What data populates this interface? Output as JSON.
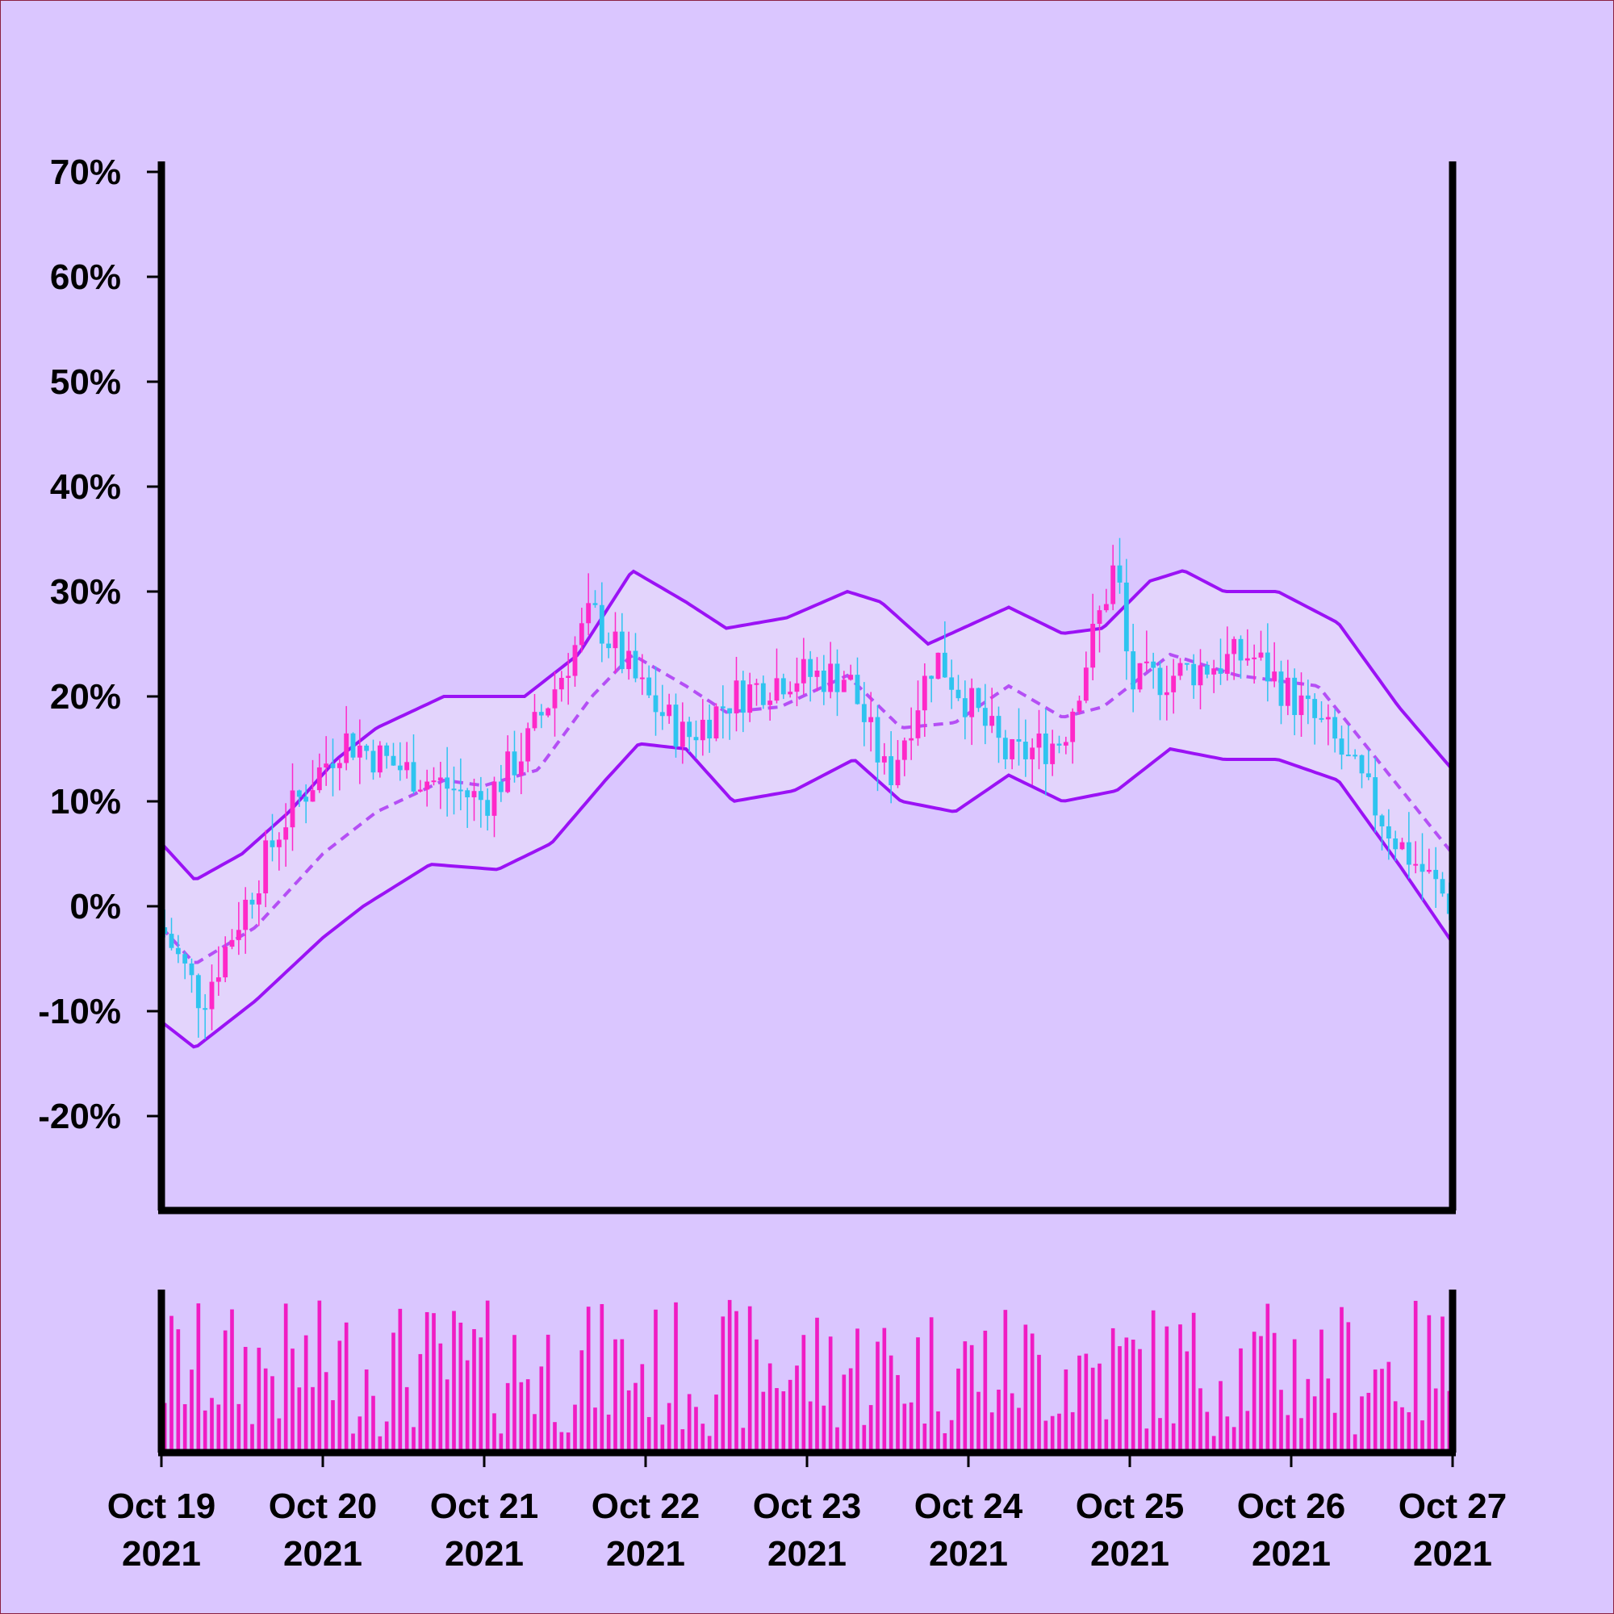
{
  "colors": {
    "background": "#dac6ff",
    "band_line": "#9b12f5",
    "band_fill": "#e6d8fb",
    "middle_line": "#b54ff5",
    "up_candle": "#ff28c8",
    "down_candle": "#2ec4ef",
    "volume": "#f01cc3",
    "axis": "#000000"
  },
  "chart_data": {
    "type": "candlestick",
    "title": "",
    "xlabel": "",
    "ylabel": "",
    "ylim": [
      -29,
      71
    ],
    "yticks": [
      70,
      60,
      50,
      40,
      30,
      20,
      10,
      0,
      -10,
      -20
    ],
    "ytick_labels": [
      "70%",
      "60%",
      "50%",
      "40%",
      "30%",
      "20%",
      "10%",
      "0%",
      "-10%",
      "-20%"
    ],
    "y_format": "percent",
    "xrange": [
      "2021-10-19",
      "2021-10-27"
    ],
    "xticks": [
      {
        "date": "2021-10-19",
        "line1": "Oct 19",
        "line2": "2021"
      },
      {
        "date": "2021-10-20",
        "line1": "Oct 20",
        "line2": "2021"
      },
      {
        "date": "2021-10-21",
        "line1": "Oct 21",
        "line2": "2021"
      },
      {
        "date": "2021-10-22",
        "line1": "Oct 22",
        "line2": "2021"
      },
      {
        "date": "2021-10-23",
        "line1": "Oct 23",
        "line2": "2021"
      },
      {
        "date": "2021-10-24",
        "line1": "Oct 24",
        "line2": "2021"
      },
      {
        "date": "2021-10-25",
        "line1": "Oct 25",
        "line2": "2021"
      },
      {
        "date": "2021-10-26",
        "line1": "Oct 26",
        "line2": "2021"
      },
      {
        "date": "2021-10-27",
        "line1": "Oct 27",
        "line2": "2021"
      }
    ],
    "grid": false,
    "legend": "none",
    "overlay": "bollinger bands (upper, middle dashed, lower)",
    "volume_panel": true,
    "price_keypoints": [
      {
        "date": "2021-10-19 00:00",
        "close": -2
      },
      {
        "date": "2021-10-19 06:00",
        "close": -9
      },
      {
        "date": "2021-10-19 18:00",
        "close": 8
      },
      {
        "date": "2021-10-20 03:00",
        "close": 16
      },
      {
        "date": "2021-10-20 12:00",
        "close": 13
      },
      {
        "date": "2021-10-21 00:00",
        "close": 10
      },
      {
        "date": "2021-10-21 06:00",
        "close": 15
      },
      {
        "date": "2021-10-21 16:00",
        "close": 28
      },
      {
        "date": "2021-10-22 00:00",
        "close": 20
      },
      {
        "date": "2021-10-22 06:00",
        "close": 16
      },
      {
        "date": "2021-10-22 13:00",
        "close": 20
      },
      {
        "date": "2021-10-22 21:00",
        "close": 22
      },
      {
        "date": "2021-10-23 06:00",
        "close": 22
      },
      {
        "date": "2021-10-23 12:00",
        "close": 12
      },
      {
        "date": "2021-10-23 19:00",
        "close": 24
      },
      {
        "date": "2021-10-24 06:00",
        "close": 14
      },
      {
        "date": "2021-10-24 14:00",
        "close": 16
      },
      {
        "date": "2021-10-24 22:00",
        "close": 33
      },
      {
        "date": "2021-10-25 00:00",
        "close": 21
      },
      {
        "date": "2021-10-25 12:00",
        "close": 23
      },
      {
        "date": "2021-10-25 18:00",
        "close": 24
      },
      {
        "date": "2021-10-26 06:00",
        "close": 16
      },
      {
        "date": "2021-10-26 16:00",
        "close": 6
      },
      {
        "date": "2021-10-27 00:00",
        "close": 0
      }
    ],
    "upper_band": [
      {
        "date": "2021-10-19 00:00",
        "value": 6
      },
      {
        "date": "2021-10-19 05:00",
        "value": 2.5
      },
      {
        "date": "2021-10-19 12:00",
        "value": 5
      },
      {
        "date": "2021-10-19 19:00",
        "value": 9
      },
      {
        "date": "2021-10-20 02:00",
        "value": 14
      },
      {
        "date": "2021-10-20 08:00",
        "value": 17
      },
      {
        "date": "2021-10-20 18:00",
        "value": 20
      },
      {
        "date": "2021-10-21 06:00",
        "value": 20
      },
      {
        "date": "2021-10-21 14:00",
        "value": 24
      },
      {
        "date": "2021-10-21 22:00",
        "value": 32
      },
      {
        "date": "2021-10-22 06:00",
        "value": 29
      },
      {
        "date": "2021-10-22 12:00",
        "value": 26.5
      },
      {
        "date": "2021-10-22 21:00",
        "value": 27.5
      },
      {
        "date": "2021-10-23 06:00",
        "value": 30
      },
      {
        "date": "2021-10-23 11:00",
        "value": 29
      },
      {
        "date": "2021-10-23 18:00",
        "value": 25
      },
      {
        "date": "2021-10-24 06:00",
        "value": 28.5
      },
      {
        "date": "2021-10-24 14:00",
        "value": 26
      },
      {
        "date": "2021-10-24 20:00",
        "value": 26.5
      },
      {
        "date": "2021-10-25 03:00",
        "value": 31
      },
      {
        "date": "2021-10-25 08:00",
        "value": 32
      },
      {
        "date": "2021-10-25 14:00",
        "value": 30
      },
      {
        "date": "2021-10-25 22:00",
        "value": 30
      },
      {
        "date": "2021-10-26 07:00",
        "value": 27
      },
      {
        "date": "2021-10-26 16:00",
        "value": 19
      },
      {
        "date": "2021-10-27 00:00",
        "value": 13
      }
    ],
    "middle_band": [
      {
        "date": "2021-10-19 00:00",
        "value": -2
      },
      {
        "date": "2021-10-19 05:00",
        "value": -5.5
      },
      {
        "date": "2021-10-19 14:00",
        "value": -2
      },
      {
        "date": "2021-10-20 00:00",
        "value": 5
      },
      {
        "date": "2021-10-20 08:00",
        "value": 9
      },
      {
        "date": "2021-10-20 18:00",
        "value": 12
      },
      {
        "date": "2021-10-21 00:00",
        "value": 11.5
      },
      {
        "date": "2021-10-21 08:00",
        "value": 13
      },
      {
        "date": "2021-10-21 16:00",
        "value": 20
      },
      {
        "date": "2021-10-21 22:00",
        "value": 24
      },
      {
        "date": "2021-10-22 06:00",
        "value": 21
      },
      {
        "date": "2021-10-22 12:00",
        "value": 18.5
      },
      {
        "date": "2021-10-22 20:00",
        "value": 19
      },
      {
        "date": "2021-10-23 06:00",
        "value": 22
      },
      {
        "date": "2021-10-23 14:00",
        "value": 17
      },
      {
        "date": "2021-10-23 22:00",
        "value": 17.5
      },
      {
        "date": "2021-10-24 06:00",
        "value": 21
      },
      {
        "date": "2021-10-24 14:00",
        "value": 18
      },
      {
        "date": "2021-10-24 20:00",
        "value": 19
      },
      {
        "date": "2021-10-25 06:00",
        "value": 24
      },
      {
        "date": "2021-10-25 16:00",
        "value": 22
      },
      {
        "date": "2021-10-26 04:00",
        "value": 21
      },
      {
        "date": "2021-10-26 14:00",
        "value": 13
      },
      {
        "date": "2021-10-27 00:00",
        "value": 5
      }
    ],
    "lower_band": [
      {
        "date": "2021-10-19 00:00",
        "value": -11
      },
      {
        "date": "2021-10-19 05:00",
        "value": -13.5
      },
      {
        "date": "2021-10-19 14:00",
        "value": -9
      },
      {
        "date": "2021-10-20 00:00",
        "value": -3
      },
      {
        "date": "2021-10-20 06:00",
        "value": 0
      },
      {
        "date": "2021-10-20 16:00",
        "value": 4
      },
      {
        "date": "2021-10-21 02:00",
        "value": 3.5
      },
      {
        "date": "2021-10-21 10:00",
        "value": 6
      },
      {
        "date": "2021-10-21 18:00",
        "value": 12
      },
      {
        "date": "2021-10-21 23:00",
        "value": 15.5
      },
      {
        "date": "2021-10-22 06:00",
        "value": 15
      },
      {
        "date": "2021-10-22 13:00",
        "value": 10
      },
      {
        "date": "2021-10-22 22:00",
        "value": 11
      },
      {
        "date": "2021-10-23 07:00",
        "value": 14
      },
      {
        "date": "2021-10-23 14:00",
        "value": 10
      },
      {
        "date": "2021-10-23 22:00",
        "value": 9
      },
      {
        "date": "2021-10-24 06:00",
        "value": 12.5
      },
      {
        "date": "2021-10-24 14:00",
        "value": 10
      },
      {
        "date": "2021-10-24 22:00",
        "value": 11
      },
      {
        "date": "2021-10-25 06:00",
        "value": 15
      },
      {
        "date": "2021-10-25 14:00",
        "value": 14
      },
      {
        "date": "2021-10-25 22:00",
        "value": 14
      },
      {
        "date": "2021-10-26 07:00",
        "value": 12
      },
      {
        "date": "2021-10-26 16:00",
        "value": 4
      },
      {
        "date": "2021-10-27 00:00",
        "value": -3.5
      }
    ]
  }
}
